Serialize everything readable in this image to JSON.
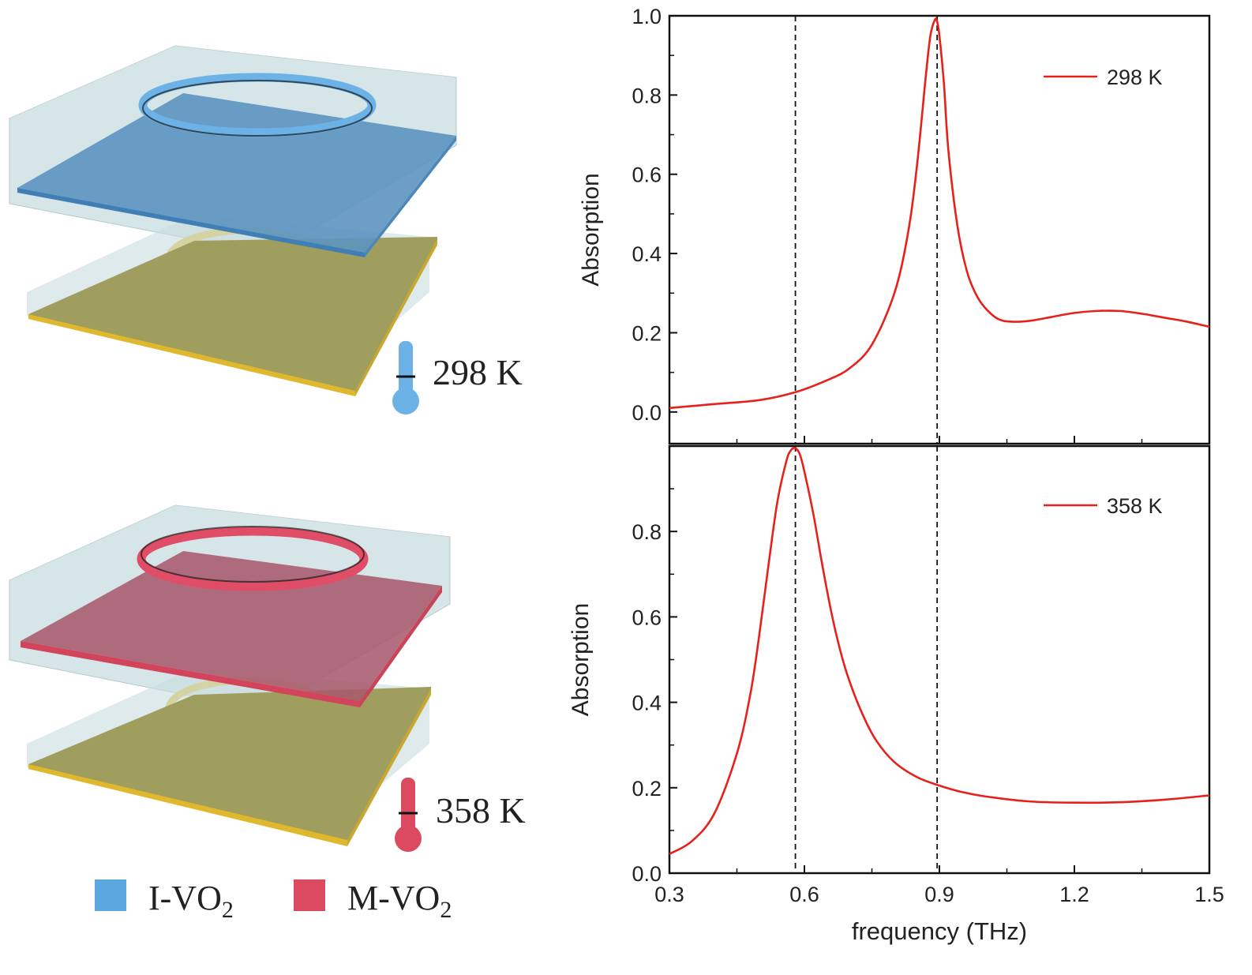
{
  "schematic": {
    "top_temperature": "298 K",
    "bottom_temperature": "358 K",
    "legend": [
      {
        "label": "I-VO",
        "sub": "2",
        "color": "#5aa7de"
      },
      {
        "label": "M-VO",
        "sub": "2",
        "color": "#dc4a60"
      }
    ],
    "colors": {
      "glass": "#c3d8dc",
      "gold": "#e8c24c",
      "gold_plate": "#9c9a58",
      "i_vo2_plate": "#5c93c0",
      "m_vo2_plate": "#a85a6d",
      "i_vo2_ring": "#6cb2e6",
      "m_vo2_ring": "#e04d66"
    }
  },
  "chart_data": [
    {
      "type": "line",
      "title": "",
      "xlabel": "",
      "ylabel": "Absorption",
      "xlim": [
        0.3,
        1.5
      ],
      "ylim": [
        -0.08,
        1.0
      ],
      "xticks": [
        0.3,
        0.6,
        0.9,
        1.2,
        1.5
      ],
      "yticks": [
        0.0,
        0.2,
        0.4,
        0.6,
        0.8,
        1.0
      ],
      "ytick_labels": [
        "0.0",
        "0.2",
        "0.4",
        "0.6",
        "0.8",
        "1.0"
      ],
      "show_xtick_labels": false,
      "vlines": [
        0.58,
        0.895
      ],
      "legend_position": "top-right",
      "color": "#e8201c",
      "series": [
        {
          "name": "298 K",
          "x": [
            0.3,
            0.4,
            0.5,
            0.58,
            0.65,
            0.7,
            0.75,
            0.8,
            0.83,
            0.85,
            0.87,
            0.88,
            0.89,
            0.895,
            0.9,
            0.91,
            0.92,
            0.94,
            0.96,
            0.98,
            1.0,
            1.03,
            1.06,
            1.1,
            1.15,
            1.2,
            1.25,
            1.3,
            1.35,
            1.4,
            1.45,
            1.5
          ],
          "y": [
            0.01,
            0.02,
            0.03,
            0.05,
            0.08,
            0.11,
            0.17,
            0.3,
            0.45,
            0.62,
            0.85,
            0.95,
            0.99,
            0.985,
            0.95,
            0.83,
            0.66,
            0.47,
            0.36,
            0.3,
            0.265,
            0.235,
            0.228,
            0.23,
            0.24,
            0.25,
            0.255,
            0.255,
            0.248,
            0.238,
            0.228,
            0.215
          ]
        }
      ]
    },
    {
      "type": "line",
      "title": "",
      "xlabel": "frequency (THz)",
      "ylabel": "Absorption",
      "xlim": [
        0.3,
        1.5
      ],
      "ylim": [
        0.0,
        1.0
      ],
      "xticks": [
        0.3,
        0.6,
        0.9,
        1.2,
        1.5
      ],
      "xtick_labels": [
        "0.3",
        "0.6",
        "0.9",
        "1.2",
        "1.5"
      ],
      "yticks": [
        0.0,
        0.2,
        0.4,
        0.6,
        0.8
      ],
      "ytick_labels": [
        "0.0",
        "0.2",
        "0.4",
        "0.6",
        "0.8"
      ],
      "show_xtick_labels": true,
      "vlines": [
        0.58,
        0.895
      ],
      "legend_position": "top-right",
      "color": "#e8201c",
      "series": [
        {
          "name": "358 K",
          "x": [
            0.3,
            0.35,
            0.4,
            0.45,
            0.48,
            0.5,
            0.52,
            0.54,
            0.56,
            0.57,
            0.58,
            0.59,
            0.6,
            0.62,
            0.64,
            0.66,
            0.68,
            0.7,
            0.73,
            0.76,
            0.8,
            0.85,
            0.9,
            0.95,
            1.0,
            1.1,
            1.2,
            1.3,
            1.4,
            1.5
          ],
          "y": [
            0.045,
            0.075,
            0.14,
            0.28,
            0.42,
            0.56,
            0.72,
            0.87,
            0.965,
            0.99,
            0.995,
            0.98,
            0.94,
            0.84,
            0.72,
            0.61,
            0.52,
            0.45,
            0.37,
            0.31,
            0.26,
            0.225,
            0.205,
            0.19,
            0.18,
            0.168,
            0.165,
            0.166,
            0.172,
            0.182
          ]
        }
      ]
    }
  ]
}
